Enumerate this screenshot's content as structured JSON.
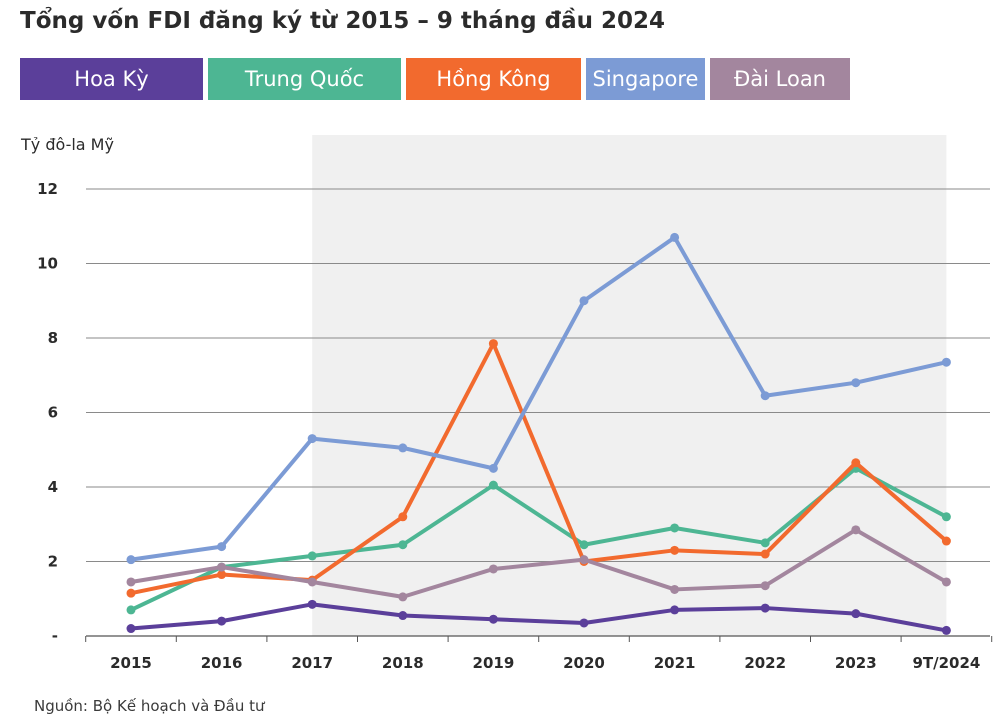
{
  "chart_data": {
    "type": "line",
    "title": "Tổng vốn FDI đăng ký từ 2015 – 9 tháng đầu 2024",
    "ylabel": "Tỷ đô-la Mỹ",
    "xlabel": "",
    "categories": [
      "2015",
      "2016",
      "2017",
      "2018",
      "2019",
      "2020",
      "2021",
      "2022",
      "2023",
      "9T/2024"
    ],
    "y_ticks": [
      "-",
      "2",
      "4",
      "6",
      "8",
      "10",
      "12"
    ],
    "ylim": [
      0,
      12
    ],
    "shaded_region": [
      "2017",
      "9T/2024"
    ],
    "grid": true,
    "legend_position": "top",
    "series": [
      {
        "name": "Hoa Kỳ",
        "color": "#5b3f9a",
        "values": [
          0.2,
          0.4,
          0.85,
          0.55,
          0.45,
          0.35,
          0.7,
          0.75,
          0.6,
          0.15
        ]
      },
      {
        "name": "Trung Quốc",
        "color": "#4db693",
        "values": [
          0.7,
          1.85,
          2.15,
          2.45,
          4.05,
          2.45,
          2.9,
          2.5,
          4.5,
          3.2
        ]
      },
      {
        "name": "Hồng Kông",
        "color": "#f26a2e",
        "values": [
          1.15,
          1.65,
          1.5,
          3.2,
          7.85,
          2.0,
          2.3,
          2.2,
          4.65,
          2.55
        ]
      },
      {
        "name": "Singapore",
        "color": "#7c9bd5",
        "values": [
          2.05,
          2.4,
          5.3,
          5.05,
          4.5,
          9.0,
          10.7,
          6.45,
          6.8,
          7.35
        ]
      },
      {
        "name": "Đài Loan",
        "color": "#a3869e",
        "values": [
          1.45,
          1.85,
          1.45,
          1.05,
          1.8,
          2.05,
          1.25,
          1.35,
          2.85,
          1.45
        ]
      }
    ]
  },
  "source": "Nguồn: Bộ Kế hoạch và Đầu tư"
}
